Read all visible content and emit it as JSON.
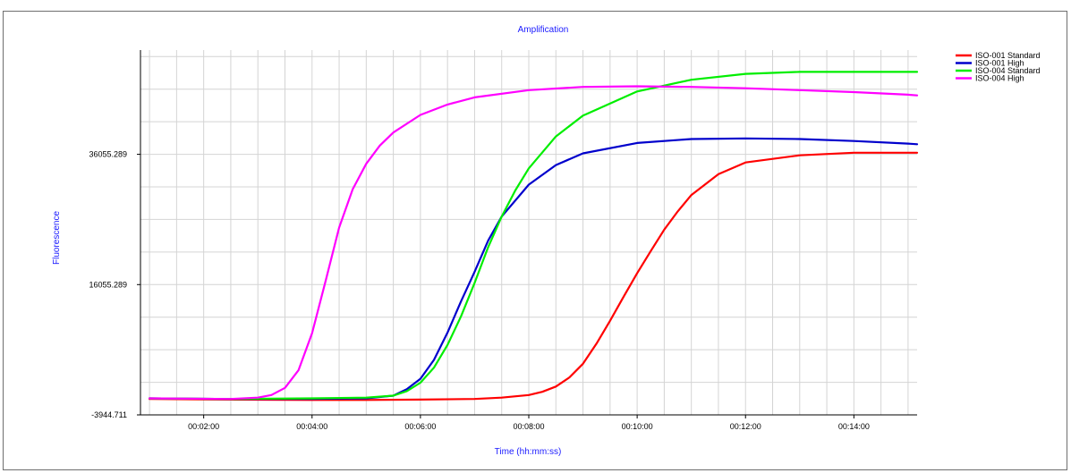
{
  "chart_data": {
    "type": "line",
    "title": "Amplification",
    "xlabel": "Time (hh:mm:ss)",
    "ylabel": "Fluorescence",
    "x_ticks": [
      "00:02:00",
      "00:04:00",
      "00:06:00",
      "00:08:00",
      "00:10:00",
      "00:12:00",
      "00:14:00"
    ],
    "y_ticks": [
      "-3944.711",
      "16055.289",
      "36055.289"
    ],
    "x_range_seconds": [
      50,
      910
    ],
    "ylim": [
      -3944.711,
      52055.289
    ],
    "grid": true,
    "legend_position": "top-right",
    "series": [
      {
        "name": "ISO-001 Standard",
        "color": "#ff0000",
        "x_seconds": [
          60,
          150,
          240,
          300,
          360,
          420,
          450,
          480,
          495,
          510,
          525,
          540,
          555,
          570,
          585,
          600,
          615,
          630,
          645,
          660,
          690,
          720,
          780,
          840,
          900,
          910
        ],
        "values": [
          -1500,
          -1600,
          -1650,
          -1650,
          -1600,
          -1500,
          -1300,
          -900,
          -400,
          400,
          1800,
          3900,
          7000,
          10500,
          14200,
          17800,
          21200,
          24500,
          27300,
          29800,
          33000,
          34800,
          35900,
          36300,
          36300,
          36300
        ]
      },
      {
        "name": "ISO-001 High",
        "color": "#0000cc",
        "x_seconds": [
          60,
          150,
          240,
          300,
          330,
          345,
          360,
          375,
          390,
          405,
          420,
          435,
          450,
          480,
          510,
          540,
          600,
          660,
          720,
          780,
          840,
          900,
          910
        ],
        "values": [
          -1400,
          -1500,
          -1500,
          -1400,
          -1000,
          0,
          1600,
          4500,
          8700,
          13500,
          18000,
          22800,
          26500,
          31400,
          34400,
          36200,
          37800,
          38400,
          38500,
          38400,
          38100,
          37700,
          37600
        ]
      },
      {
        "name": "ISO-004 Standard",
        "color": "#00ee00",
        "x_seconds": [
          60,
          150,
          240,
          300,
          330,
          345,
          360,
          375,
          390,
          405,
          420,
          435,
          450,
          465,
          480,
          510,
          540,
          600,
          660,
          720,
          780,
          840,
          900,
          910
        ],
        "values": [
          -1400,
          -1500,
          -1400,
          -1300,
          -1000,
          -300,
          1000,
          3300,
          6800,
          11200,
          16300,
          21800,
          26500,
          30500,
          33900,
          38800,
          42000,
          45700,
          47500,
          48400,
          48700,
          48700,
          48700,
          48700
        ]
      },
      {
        "name": "ISO-004 High",
        "color": "#ff00ff",
        "x_seconds": [
          60,
          150,
          180,
          195,
          210,
          225,
          240,
          255,
          270,
          285,
          300,
          315,
          330,
          360,
          390,
          420,
          480,
          540,
          600,
          660,
          720,
          780,
          840,
          900,
          910
        ],
        "values": [
          -1400,
          -1500,
          -1300,
          -900,
          200,
          2900,
          8600,
          16600,
          24800,
          30700,
          34600,
          37400,
          39400,
          42100,
          43700,
          44800,
          45900,
          46400,
          46500,
          46400,
          46200,
          45900,
          45600,
          45200,
          45100
        ]
      }
    ]
  }
}
